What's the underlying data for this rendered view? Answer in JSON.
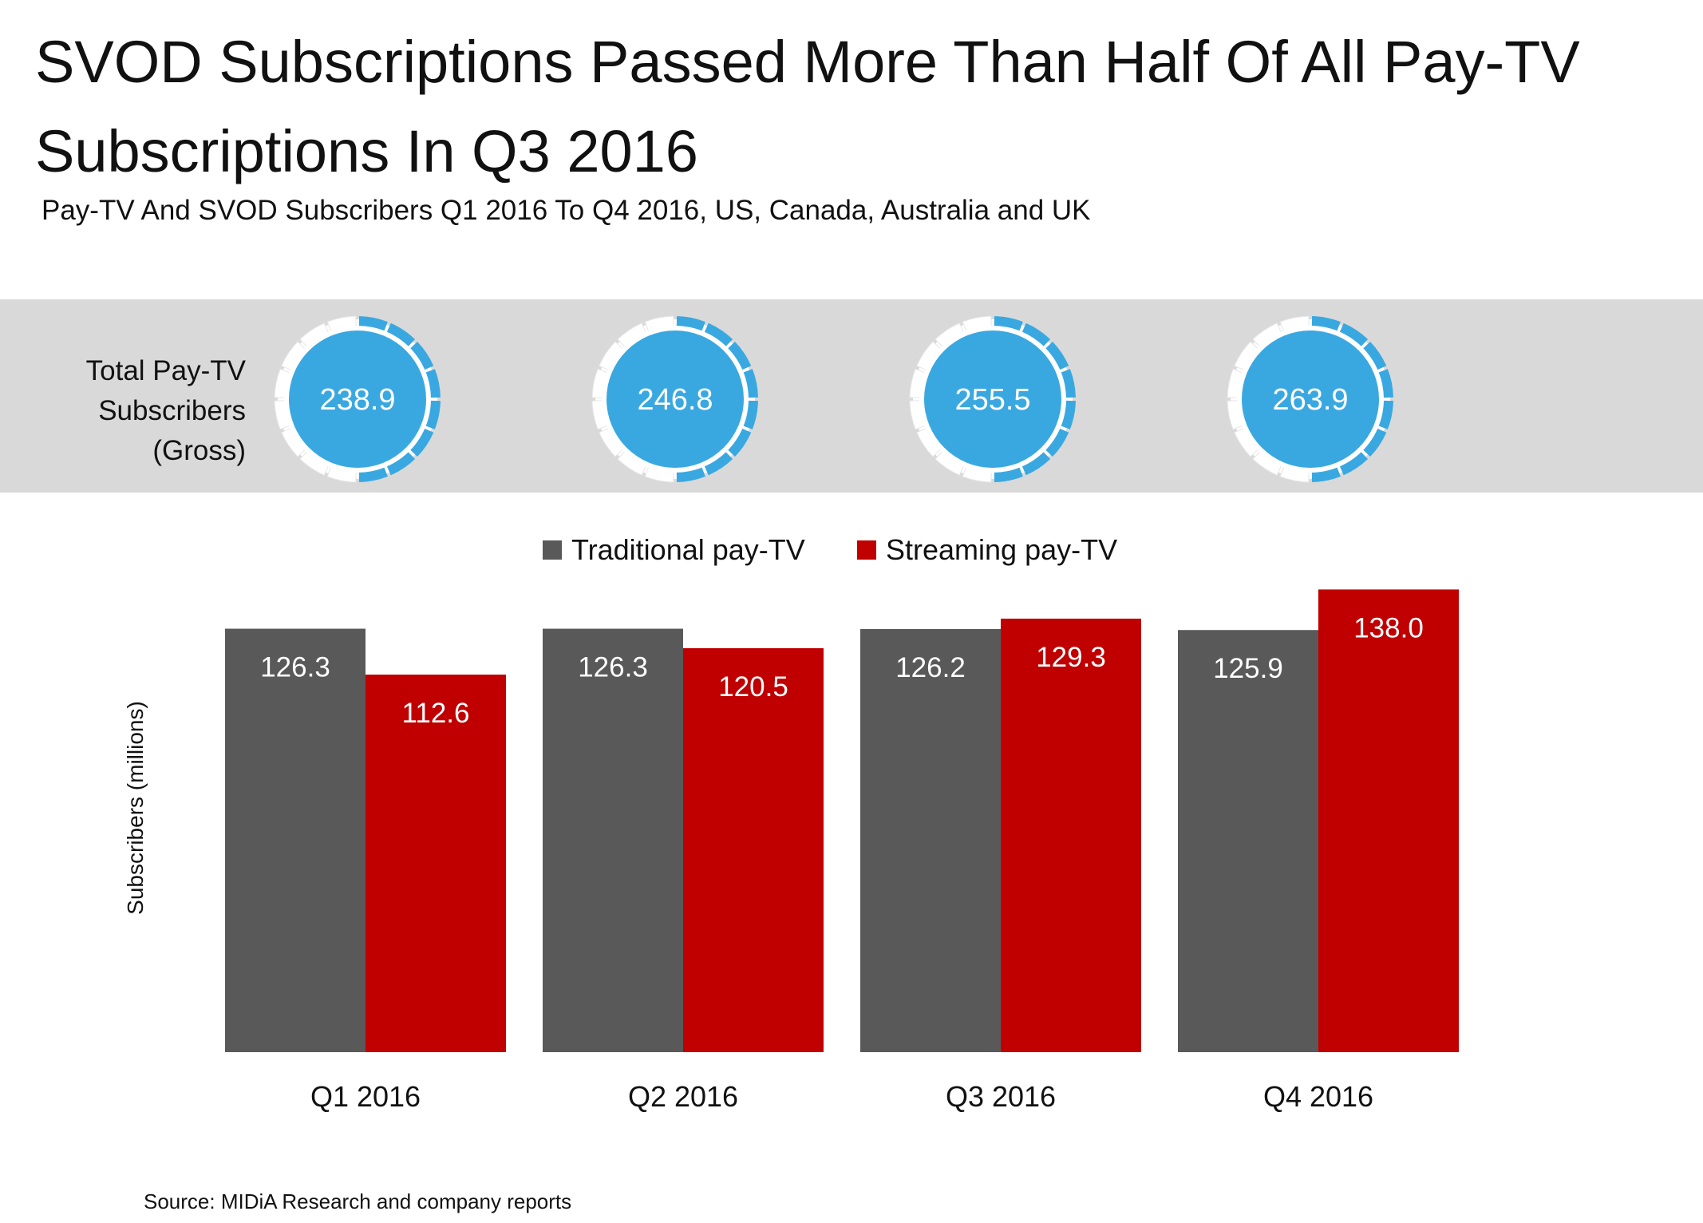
{
  "title": "SVOD Subscriptions Passed More Than Half Of All Pay-TV Subscriptions In Q3 2016",
  "subtitle": "Pay-TV And SVOD Subscribers Q1 2016 To Q4 2016, US, Canada, Australia and UK",
  "band_label": [
    "Total Pay-TV",
    "Subscribers",
    "(Gross)"
  ],
  "source": "Source: MIDiA Research and company reports",
  "colors": {
    "traditional": "#595959",
    "streaming": "#c00000",
    "donut": "#3aa8e0",
    "band": "#d9d9d9"
  },
  "totals": [
    {
      "label": "238.9",
      "streaming_share": 0.471
    },
    {
      "label": "246.8",
      "streaming_share": 0.488
    },
    {
      "label": "255.5",
      "streaming_share": 0.506
    },
    {
      "label": "263.9",
      "streaming_share": 0.523
    }
  ],
  "chart_data": {
    "type": "bar",
    "title": "",
    "ylabel": "Subscribers (millions)",
    "xlabel": "",
    "categories": [
      "Q1 2016",
      "Q2 2016",
      "Q3 2016",
      "Q4 2016"
    ],
    "ylim": [
      0,
      140
    ],
    "grid": false,
    "legend_placement": "top-center",
    "series": [
      {
        "name": "Traditional pay-TV",
        "values": [
          126.3,
          126.3,
          126.2,
          125.9
        ],
        "labels": [
          "126.3",
          "126.3",
          "126.2",
          "125.9"
        ]
      },
      {
        "name": "Streaming pay-TV",
        "values": [
          112.6,
          120.5,
          129.3,
          138.0
        ],
        "labels": [
          "112.6",
          "120.5",
          "129.3",
          "138.0"
        ]
      }
    ]
  }
}
